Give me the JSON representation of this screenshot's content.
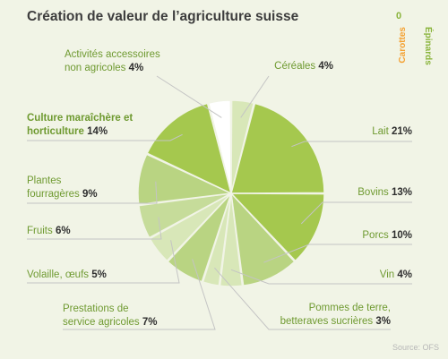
{
  "chart_data": {
    "type": "pie",
    "title": "Création de valeur de l’agriculture suisse",
    "source": "Source: OFS",
    "slices": [
      {
        "id": "cereales",
        "lines": [
          "Céréales"
        ],
        "value": 4,
        "color": "#d8e7b8",
        "highlight": false
      },
      {
        "id": "lait",
        "lines": [
          "Lait"
        ],
        "value": 21,
        "color": "#a5c84e",
        "highlight": false
      },
      {
        "id": "bovins",
        "lines": [
          "Bovins"
        ],
        "value": 13,
        "color": "#a5c84e",
        "highlight": false
      },
      {
        "id": "porcs",
        "lines": [
          "Porcs"
        ],
        "value": 10,
        "color": "#b9d482",
        "highlight": false
      },
      {
        "id": "vin",
        "lines": [
          "Vin"
        ],
        "value": 4,
        "color": "#d8e7b8",
        "highlight": false
      },
      {
        "id": "pommes",
        "lines": [
          "Pommes de terre,",
          "betteraves sucrières"
        ],
        "value": 3,
        "color": "#d8e7b8",
        "highlight": false
      },
      {
        "id": "prestations",
        "lines": [
          "Prestations de",
          "service agricoles"
        ],
        "value": 7,
        "color": "#b9d482",
        "highlight": false
      },
      {
        "id": "volaille",
        "lines": [
          "Volaille, œufs"
        ],
        "value": 5,
        "color": "#d8e7b8",
        "highlight": false
      },
      {
        "id": "fruits",
        "lines": [
          "Fruits"
        ],
        "value": 6,
        "color": "#c6dc9a",
        "highlight": false
      },
      {
        "id": "plantes",
        "lines": [
          "Plantes",
          "fourragères"
        ],
        "value": 9,
        "color": "#b9d482",
        "highlight": false
      },
      {
        "id": "culture",
        "lines": [
          "Culture maraîchère et",
          "horticulture"
        ],
        "value": 14,
        "color": "#a5c84e",
        "highlight": true
      },
      {
        "id": "activites",
        "lines": [
          "Activités accessoires",
          "non agricoles"
        ],
        "value": 4,
        "color": "#ffffff",
        "highlight": false
      }
    ]
  },
  "corner": {
    "zero": "0",
    "carottes": "Carottes",
    "epinards": "Épinards"
  }
}
